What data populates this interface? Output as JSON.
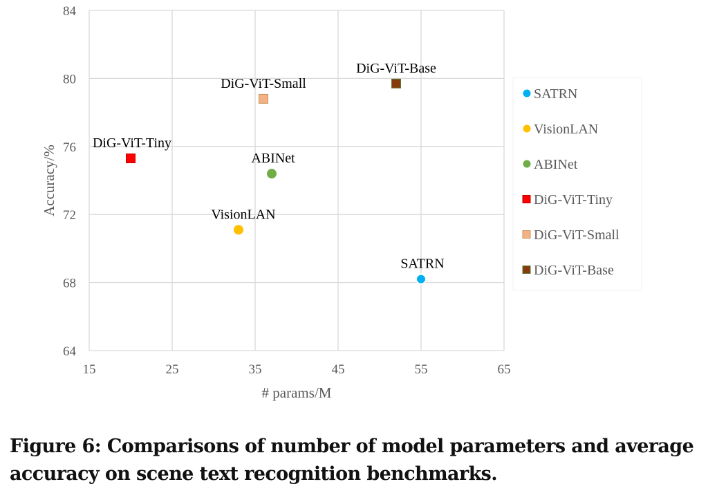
{
  "chart_data": {
    "type": "scatter",
    "title": "",
    "xlabel": "# params/M",
    "ylabel": "Accuracy/%",
    "xlim": [
      15,
      65
    ],
    "ylim": [
      64,
      84
    ],
    "xticks": [
      15,
      25,
      35,
      45,
      55,
      65
    ],
    "yticks": [
      64,
      68,
      72,
      76,
      80,
      84
    ],
    "grid": true,
    "legend_position": "right",
    "series": [
      {
        "name": "SATRN",
        "marker": "circle",
        "color": "#00B0F0",
        "x": 55,
        "y": 68.2,
        "label": "SATRN"
      },
      {
        "name": "VisionLAN",
        "marker": "circle",
        "color": "#FFC000",
        "x": 33,
        "y": 71.1,
        "label": "VisionLAN"
      },
      {
        "name": "ABINet",
        "marker": "circle",
        "color": "#70AD47",
        "x": 37,
        "y": 74.4,
        "label": "ABINet"
      },
      {
        "name": "DiG-ViT-Tiny",
        "marker": "square",
        "color": "#FF0000",
        "edge": "#C00000",
        "x": 20,
        "y": 75.3,
        "label": "DiG-ViT-Tiny"
      },
      {
        "name": "DiG-ViT-Small",
        "marker": "square",
        "color": "#F4B183",
        "edge": "#C5965A",
        "x": 36,
        "y": 78.8,
        "label": "DiG-ViT-Small"
      },
      {
        "name": "DiG-ViT-Base",
        "marker": "square",
        "color": "#843C0C",
        "edge": "#5E7A3A",
        "x": 52,
        "y": 79.7,
        "label": "DiG-ViT-Base"
      }
    ]
  },
  "caption": "Figure 6: Comparisons of number of model parameters and average accuracy on scene text recognition benchmarks."
}
